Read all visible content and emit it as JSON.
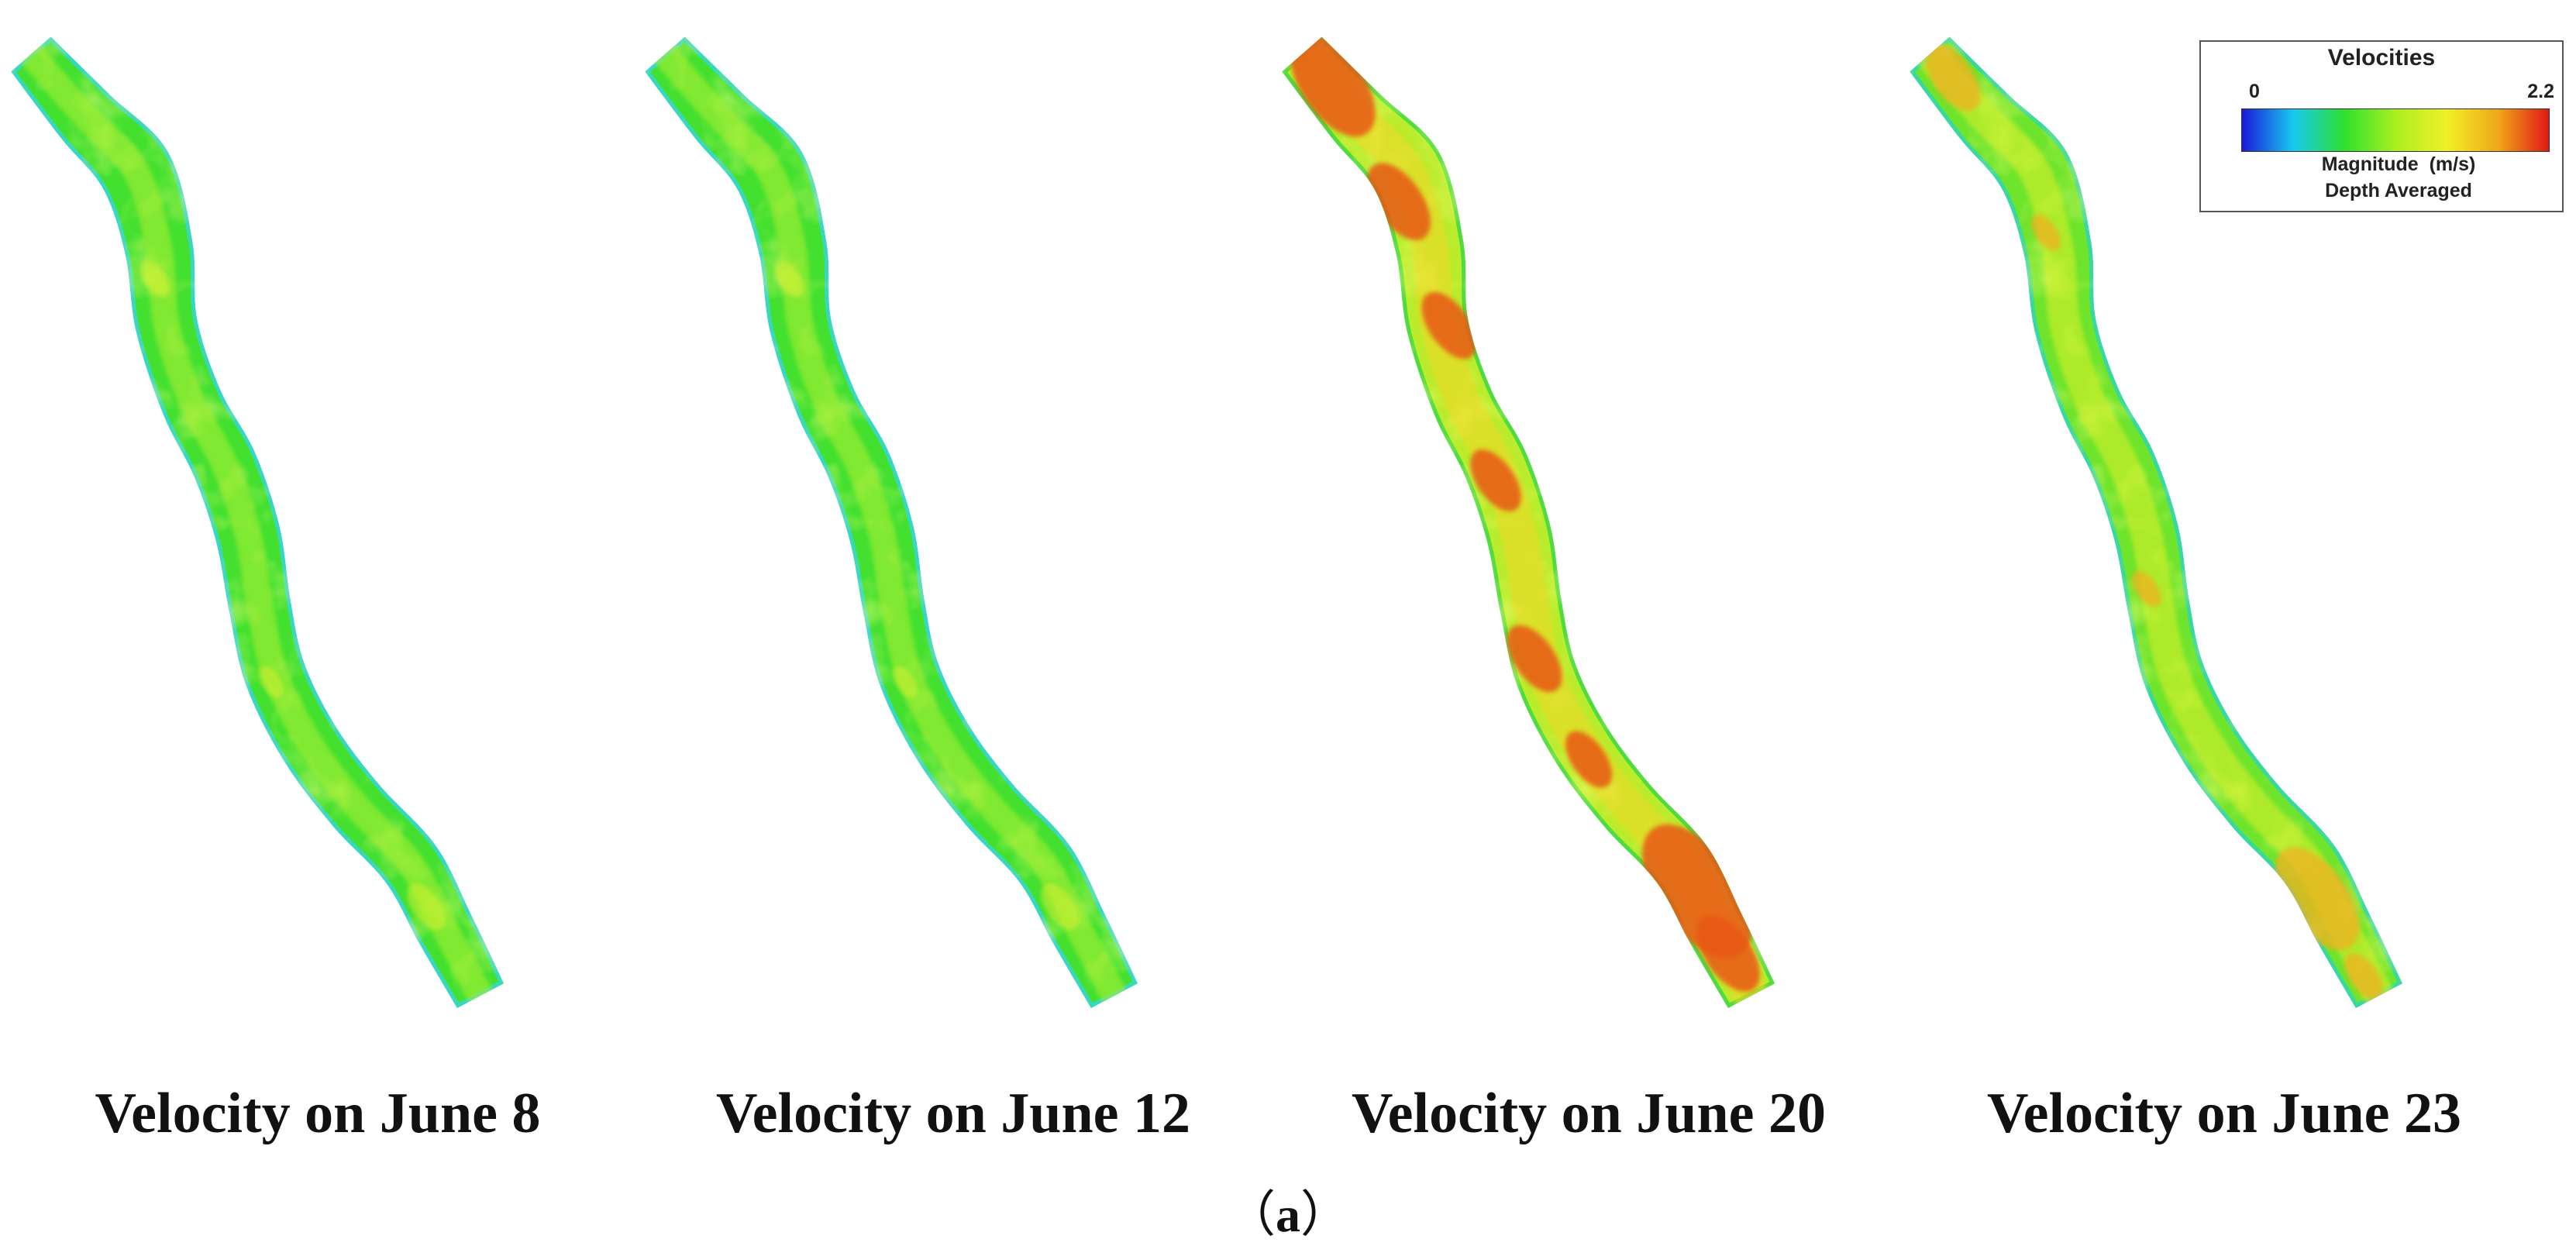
{
  "panels": [
    {
      "caption": "Velocity on June 8",
      "intensity": "low"
    },
    {
      "caption": "Velocity on June 12",
      "intensity": "low"
    },
    {
      "caption": "Velocity on June 20",
      "intensity": "high"
    },
    {
      "caption": "Velocity on June 23",
      "intensity": "medium"
    }
  ],
  "legend": {
    "title": "Velocities",
    "min_label": "0",
    "max_label": "2.2",
    "quantity": "Magnitude  (m/s)",
    "note": "Depth Averaged",
    "colors": [
      "#1a1ad8",
      "#18c8f0",
      "#2ee02e",
      "#a8f020",
      "#f0f028",
      "#f0a818",
      "#e01818"
    ]
  },
  "figure_label": "a",
  "figure_label_open": "（",
  "figure_label_close": "）"
}
